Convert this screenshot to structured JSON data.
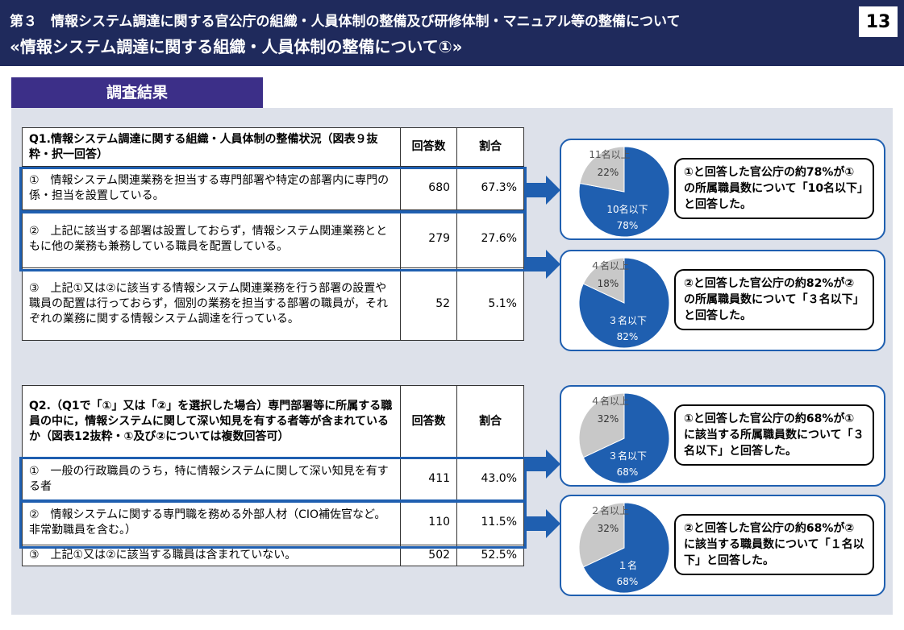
{
  "header": {
    "line1": "第３　情報システム調達に関する官公庁の組織・人員体制の整備及び研修体制・マニュアル等の整備について",
    "line2": "«情報システム調達に関する組織・人員体制の整備について①»",
    "page_number": "13"
  },
  "section_tab": "調査結果",
  "q1": {
    "question": "Q1.情報システム調達に関する組織・人員体制の整備状況（図表９抜粋・択一回答）",
    "col_count": "回答数",
    "col_ratio": "割合",
    "rows": [
      {
        "text": "①　情報システム関連業務を担当する専門部署や特定の部署内に専門の係・担当を設置している。",
        "count": "680",
        "ratio": "67.3%"
      },
      {
        "text": "②　上記に該当する部署は設置しておらず，情報システム関連業務とともに他の業務も兼務している職員を配置している。",
        "count": "279",
        "ratio": "27.6%"
      },
      {
        "text": "③　上記①又は②に該当する情報システム関連業務を行う部署の設置や職員の配置は行っておらず，個別の業務を担当する部署の職員が，それぞれの業務に関する情報システム調達を行っている。",
        "count": "52",
        "ratio": "5.1%"
      }
    ]
  },
  "q2": {
    "question": "Q2.（Q1で「①」又は「②」を選択した場合）専門部署等に所属する職員の中に，情報システムに関して深い知見を有する者等が含まれているか（図表12抜粋・①及び②については複数回答可）",
    "col_count": "回答数",
    "col_ratio": "割合",
    "rows": [
      {
        "text": "①　一般の行政職員のうち，特に情報システムに関して深い知見を有する者",
        "count": "411",
        "ratio": "43.0%"
      },
      {
        "text": "②　情報システムに関する専門職を務める外部人材（CIO補佐官など。非常勤職員を含む。）",
        "count": "110",
        "ratio": "11.5%"
      },
      {
        "text": "③　上記①又は②に該当する職員は含まれていない。",
        "count": "502",
        "ratio": "52.5%"
      }
    ]
  },
  "chart_data": [
    {
      "type": "pie",
      "categories": [
        "10名以下",
        "11名以上"
      ],
      "values": [
        78,
        22
      ],
      "value_labels": [
        "78%",
        "22%"
      ],
      "colors": [
        "#1f5fb0",
        "#c8c8c8"
      ]
    },
    {
      "type": "pie",
      "categories": [
        "３名以下",
        "４名以上"
      ],
      "values": [
        82,
        18
      ],
      "value_labels": [
        "82%",
        "18%"
      ],
      "colors": [
        "#1f5fb0",
        "#c8c8c8"
      ]
    },
    {
      "type": "pie",
      "categories": [
        "３名以下",
        "４名以上"
      ],
      "values": [
        68,
        32
      ],
      "value_labels": [
        "68%",
        "32%"
      ],
      "colors": [
        "#1f5fb0",
        "#c8c8c8"
      ]
    },
    {
      "type": "pie",
      "categories": [
        "１名",
        "２名以上"
      ],
      "values": [
        68,
        32
      ],
      "value_labels": [
        "68%",
        "32%"
      ],
      "colors": [
        "#1f5fb0",
        "#c8c8c8"
      ]
    }
  ],
  "callouts": [
    "①と回答した官公庁の約78%が①の所属職員数について「10名以下」と回答した。",
    "②と回答した官公庁の約82%が②の所属職員数について「３名以下」と回答した。",
    "①と回答した官公庁の約68%が①に該当する所属職員数について「３名以下」と回答した。",
    "②と回答した官公庁の約68%が②に該当する職員数について「１名以下」と回答した。"
  ]
}
